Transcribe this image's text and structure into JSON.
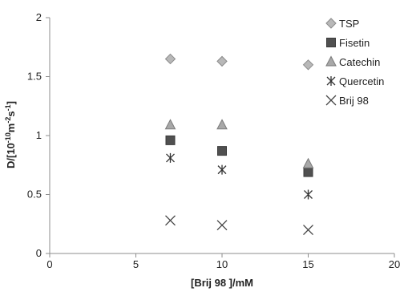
{
  "chart_data": {
    "type": "scatter",
    "xlabel": "[Brij 98 ]/mM",
    "ylabel_parts": [
      "D/[10",
      "-10",
      "m",
      "-2",
      "s",
      "-1",
      "]"
    ],
    "xlim": [
      0,
      20
    ],
    "ylim": [
      0,
      2
    ],
    "x_ticks": [
      "0",
      "5",
      "10",
      "15",
      "20"
    ],
    "y_ticks": [
      "0",
      "0.5",
      "1",
      "1.5",
      "2"
    ],
    "grid": false,
    "legend_position": "right",
    "series": [
      {
        "name": "TSP",
        "marker": "diamond",
        "color": "#b8b8b8",
        "x": [
          7,
          10,
          15
        ],
        "y": [
          1.65,
          1.63,
          1.6
        ]
      },
      {
        "name": "Fisetin",
        "marker": "square",
        "color": "#505050",
        "x": [
          7,
          10,
          15
        ],
        "y": [
          0.96,
          0.87,
          0.69
        ]
      },
      {
        "name": "Catechin",
        "marker": "triangle",
        "color": "#a8a8a8",
        "x": [
          7,
          10,
          15
        ],
        "y": [
          1.09,
          1.09,
          0.76
        ]
      },
      {
        "name": "Quercetin",
        "marker": "asterisk",
        "color": "#333333",
        "x": [
          7,
          10,
          15
        ],
        "y": [
          0.81,
          0.71,
          0.5
        ]
      },
      {
        "name": "Brij 98",
        "marker": "x",
        "color": "#444444",
        "x": [
          7,
          10,
          15
        ],
        "y": [
          0.28,
          0.24,
          0.2
        ]
      }
    ]
  }
}
